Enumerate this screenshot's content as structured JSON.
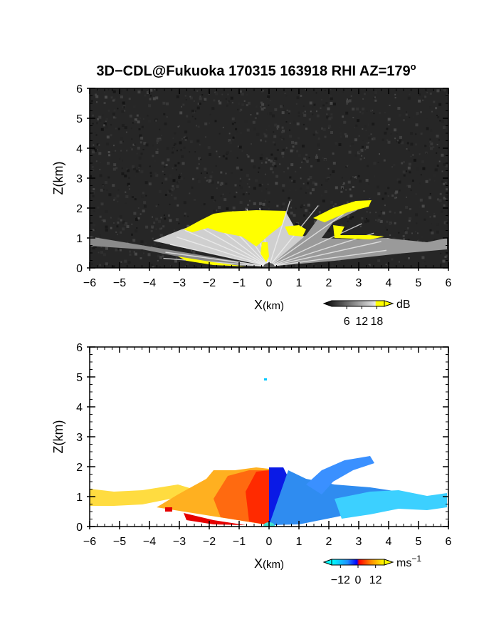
{
  "figure": {
    "title": "3D−CDL@Fukuoka 170315 163918 RHI AZ=179"
  },
  "chart_data": [
    {
      "type": "heatmap",
      "quantity": "backscatter intensity",
      "xlabel_main": "X",
      "xlabel_unit": "(km)",
      "ylabel": "Z(km)",
      "xlim": [
        -6,
        6
      ],
      "ylim": [
        0,
        6
      ],
      "x_ticks": [
        -6,
        -5,
        -4,
        -3,
        -2,
        -1,
        0,
        1,
        2,
        3,
        4,
        5,
        6
      ],
      "y_ticks": [
        0,
        1,
        2,
        3,
        4,
        5,
        6
      ],
      "colormap": "grayscale, yellow above max",
      "colorbar": {
        "unit": "dB",
        "ticks": [
          6,
          12,
          18
        ],
        "range": [
          0,
          21
        ]
      },
      "colors": {
        "background_noise": "#1e1e1e",
        "saturated": "#ffff00"
      }
    },
    {
      "type": "heatmap",
      "quantity": "radial velocity",
      "xlabel_main": "X",
      "xlabel_unit": "(km)",
      "ylabel": "Z(km)",
      "xlim": [
        -6,
        6
      ],
      "ylim": [
        0,
        6
      ],
      "x_ticks": [
        -6,
        -5,
        -4,
        -3,
        -2,
        -1,
        0,
        1,
        2,
        3,
        4,
        5,
        6
      ],
      "y_ticks": [
        0,
        1,
        2,
        3,
        4,
        5,
        6
      ],
      "colormap": "cyan-blue-red-yellow (diverging)",
      "colorbar": {
        "unit": "ms",
        "unit_exp": "−1",
        "ticks": [
          -12,
          0,
          12
        ],
        "tick_labels": [
          "−12",
          "0",
          "12"
        ],
        "range": [
          -18,
          18
        ]
      },
      "colors": {
        "negative": "#1a3cff",
        "negative_far": "#22ddff",
        "positive": "#ff3a10",
        "positive_far": "#ffe040"
      }
    }
  ]
}
